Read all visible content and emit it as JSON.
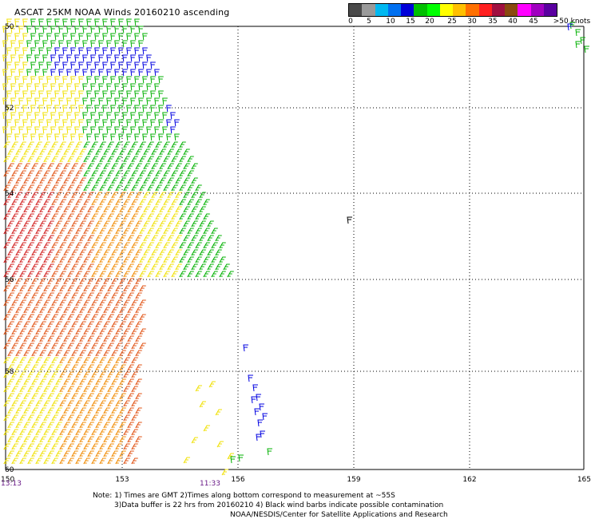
{
  "title": "ASCAT 25KM NOAA Winds 20160210 ascending",
  "legend": {
    "colors": [
      "#4a4a4a",
      "#9a9a9a",
      "#00b8f0",
      "#0070f0",
      "#0000d8",
      "#00c000",
      "#00ff00",
      "#ffff00",
      "#ffc000",
      "#ff7000",
      "#ff2020",
      "#a01040",
      "#8a4a10",
      "#ff00ff",
      "#a000c0",
      "#5a00a0"
    ],
    "labels": [
      "0",
      "5",
      "10",
      "15",
      "20",
      "25",
      "30",
      "35",
      "40",
      "45",
      ">50 knots"
    ]
  },
  "axes": {
    "lon_ticks": [
      "150",
      "153",
      "156",
      "159",
      "162",
      "165"
    ],
    "lat_ticks": [
      "50",
      "52",
      "54",
      "56",
      "58",
      "60"
    ]
  },
  "times": {
    "left": "13:13",
    "middle": "11:33"
  },
  "notes": {
    "line1": "Note: 1) Times are GMT 2)Times along bottom correspond to measurement at ~55S",
    "line2": "3)Data buffer is 22 hrs from 20160210 4) Black wind barbs indicate possible contamination",
    "line3": "NOAA/NESDIS/Center for Satellite Applications and Research"
  },
  "wind_colors": {
    "blue": "#0000e0",
    "green": "#00b000",
    "yellow": "#f0e000",
    "orange": "#f08a00",
    "red_orange": "#e05010",
    "red": "#d01818",
    "black": "#000000"
  }
}
